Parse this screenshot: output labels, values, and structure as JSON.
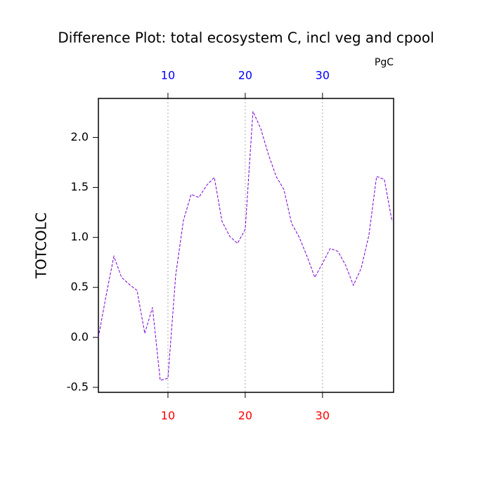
{
  "chart_data": {
    "type": "line",
    "title": "Difference Plot: total ecosystem C, incl veg and cpool",
    "units": "PgC",
    "y_label": "TOTCOLC",
    "x": [
      1,
      2,
      3,
      4,
      5,
      6,
      7,
      8,
      9,
      10,
      11,
      12,
      13,
      14,
      15,
      16,
      17,
      18,
      19,
      20,
      21,
      22,
      23,
      24,
      25,
      26,
      27,
      28,
      29,
      30,
      31,
      32,
      33,
      34,
      35,
      36,
      37,
      38,
      39
    ],
    "series": [
      {
        "color": "#7a00d6",
        "values": [
          0.0,
          0.42,
          0.81,
          0.6,
          0.53,
          0.47,
          0.04,
          0.3,
          -0.43,
          -0.41,
          0.62,
          1.17,
          1.43,
          1.4,
          1.52,
          1.6,
          1.16,
          1.01,
          0.94,
          1.08,
          2.26,
          2.09,
          1.83,
          1.61,
          1.48,
          1.14,
          1.0,
          0.81,
          0.6,
          0.74,
          0.89,
          0.86,
          0.72,
          0.52,
          0.69,
          1.02,
          1.61,
          1.58,
          1.16
        ]
      }
    ],
    "xlim": [
      1,
      39.2
    ],
    "ylim": [
      -0.55,
      2.39
    ],
    "xticks": [
      10,
      20,
      30
    ],
    "yticks": [
      {
        "value": -0.5,
        "label": "-0.5"
      },
      {
        "value": 0,
        "label": "0.0"
      },
      {
        "value": 0.5,
        "label": "0.5"
      },
      {
        "value": 1,
        "label": "1.0"
      },
      {
        "value": 1.5,
        "label": "1.5"
      },
      {
        "value": 2,
        "label": "2.0"
      }
    ],
    "top_tick_color": "#0000ff",
    "bottom_tick_color": "#ff0000",
    "grid": "x"
  }
}
